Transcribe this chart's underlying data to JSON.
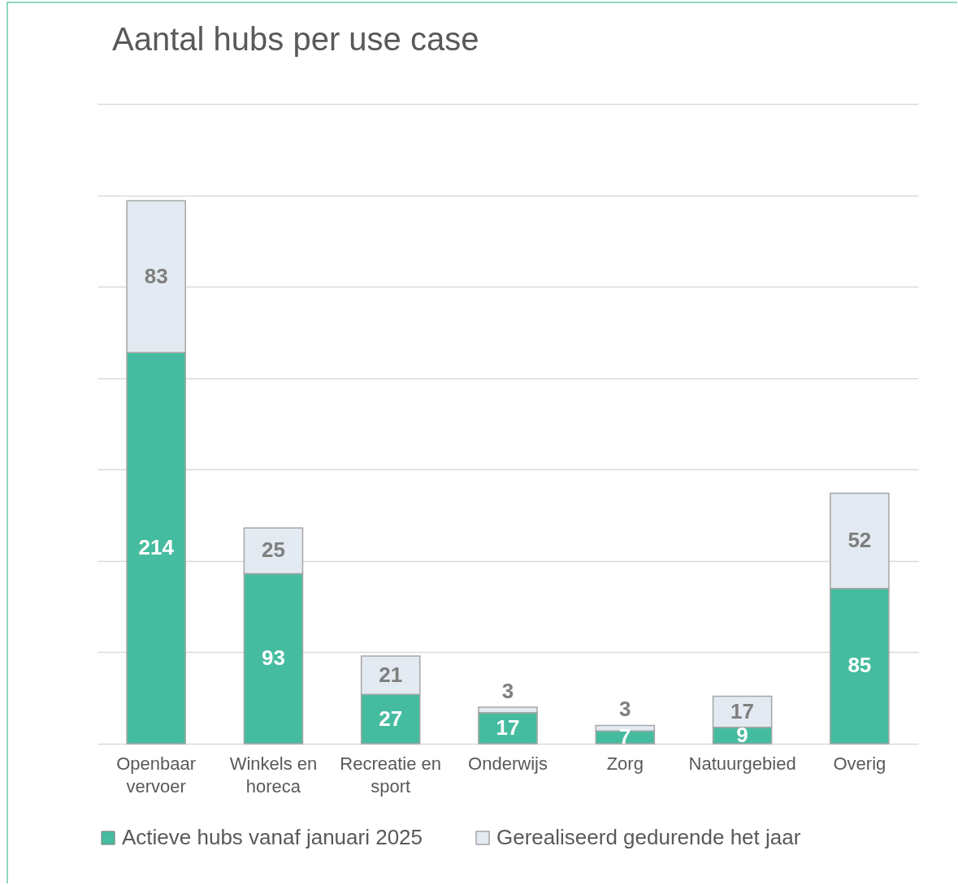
{
  "chart_data": {
    "type": "bar",
    "title": "Aantal hubs per use case",
    "stacked": true,
    "data_labels": true,
    "grid": "y",
    "legend": "bottom",
    "tick_labels": "x",
    "categories": [
      "Openbaar vervoer",
      "Winkels en horeca",
      "Recreatie en sport",
      "Onderwijs",
      "Zorg",
      "Natuurgebied",
      "Overig"
    ],
    "series": [
      {
        "name": "Actieve hubs vanaf januari 2025",
        "color": "#45bc9f",
        "values": [
          214,
          93,
          27,
          17,
          7,
          9,
          85
        ]
      },
      {
        "name": "Gerealiseerd gedurende het jaar",
        "color": "#e3eaf1",
        "values": [
          83,
          25,
          21,
          3,
          3,
          17,
          52
        ]
      }
    ],
    "ylim": [
      0,
      350
    ],
    "yticks": [
      {
        "value": 0,
        "label": null
      },
      {
        "value": 50,
        "label": null
      },
      {
        "value": 100,
        "label": null
      },
      {
        "value": 150,
        "label": null
      },
      {
        "value": 200,
        "label": null
      },
      {
        "value": 250,
        "label": null
      },
      {
        "value": 300,
        "label": null
      },
      {
        "value": 350,
        "label": null
      }
    ]
  }
}
